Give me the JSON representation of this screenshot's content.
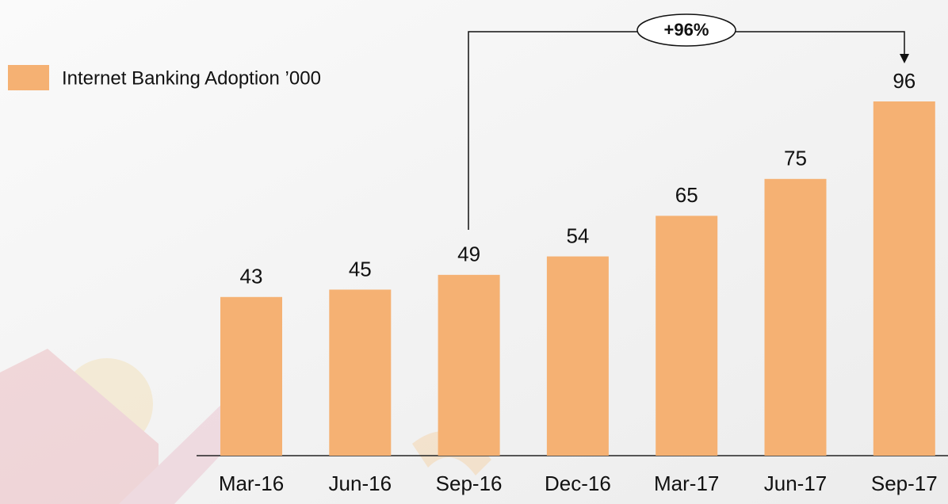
{
  "chart_data": {
    "type": "bar",
    "categories": [
      "Mar-16",
      "Jun-16",
      "Sep-16",
      "Dec-16",
      "Mar-17",
      "Jun-17",
      "Sep-17"
    ],
    "series": [
      {
        "name": "Internet Banking Adoption ’000",
        "color": "#f5b173",
        "values": [
          43,
          45,
          49,
          54,
          65,
          75,
          96
        ]
      }
    ],
    "annotation": "+96%",
    "legend": "top-left"
  }
}
